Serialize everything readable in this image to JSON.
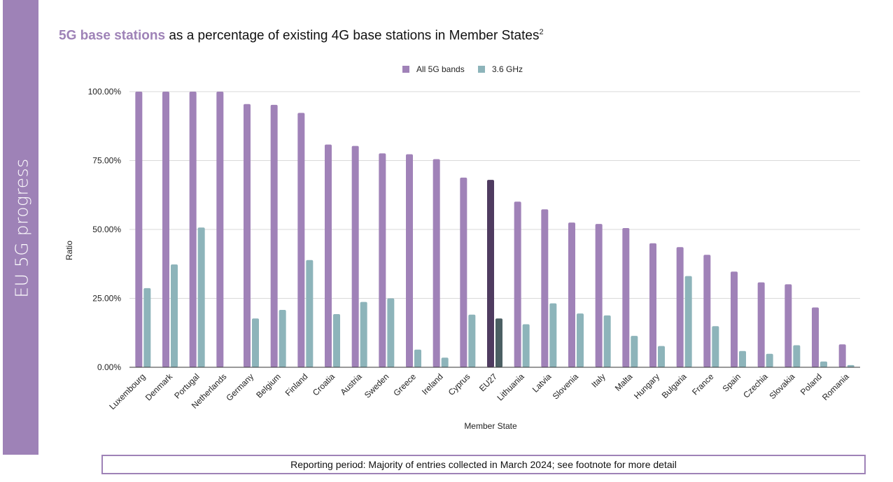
{
  "sidebar": {
    "label": "EU 5G progress"
  },
  "title": {
    "highlight": "5G base stations",
    "rest": "as a percentage of existing 4G base stations in Member States",
    "footnote_mark": "2"
  },
  "footer": {
    "text": "Reporting period: Majority of entries collected in March 2024; see footnote for more detail"
  },
  "colors": {
    "all5g": "#a082b8",
    "ghz36": "#8db4ba",
    "eu27_all5g": "#4f3b60",
    "eu27_ghz36": "#4b5f63",
    "grid": "#d9d9d9",
    "axis": "#333333"
  },
  "chart_data": {
    "type": "bar",
    "xlabel": "Member State",
    "ylabel": "Ratio",
    "ylim": [
      0,
      1
    ],
    "yticks": [
      "0.00%",
      "25.00%",
      "50.00%",
      "75.00%",
      "100.00%"
    ],
    "grid": true,
    "legend": "top-center",
    "highlight_category": "EU27",
    "categories": [
      "Luxembourg",
      "Denmark",
      "Portugal",
      "Netherlands",
      "Germany",
      "Belgium",
      "Finland",
      "Croatia",
      "Austria",
      "Sweden",
      "Greece",
      "Ireland",
      "Cyprus",
      "EU27",
      "Lithuania",
      "Latvia",
      "Slovenia",
      "Italy",
      "Malta",
      "Hungary",
      "Bulgaria",
      "France",
      "Spain",
      "Czechia",
      "Slovakia",
      "Poland",
      "Romania"
    ],
    "series": [
      {
        "name": "All 5G bands",
        "values": [
          1.0,
          1.0,
          1.0,
          1.0,
          0.955,
          0.952,
          0.923,
          0.808,
          0.803,
          0.776,
          0.773,
          0.755,
          0.688,
          0.68,
          0.601,
          0.573,
          0.525,
          0.52,
          0.505,
          0.45,
          0.436,
          0.408,
          0.347,
          0.308,
          0.301,
          0.217,
          0.083
        ]
      },
      {
        "name": "3.6 GHz",
        "values": [
          0.287,
          0.373,
          0.507,
          0.0,
          0.177,
          0.208,
          0.389,
          0.193,
          0.237,
          0.25,
          0.064,
          0.035,
          0.191,
          0.177,
          0.156,
          0.232,
          0.195,
          0.188,
          0.114,
          0.077,
          0.331,
          0.149,
          0.059,
          0.049,
          0.08,
          0.021,
          0.008
        ]
      }
    ]
  }
}
